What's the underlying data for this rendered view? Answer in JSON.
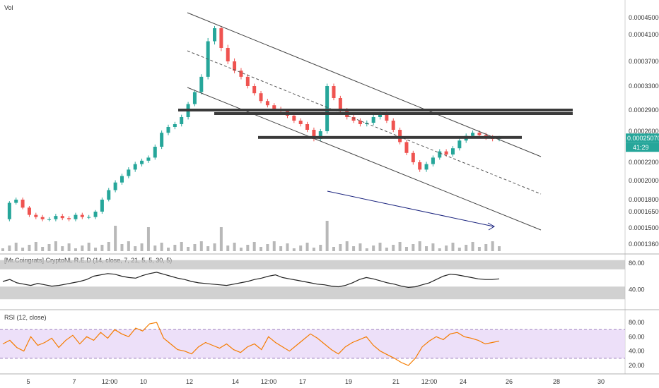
{
  "chart_data": [
    {
      "type": "candlestick",
      "title": "Vol",
      "price_scale": {
        "ticks": [
          "0.00045000",
          "0.00041000",
          "0.00037000",
          "0.00033000",
          "0.00029000",
          "0.00026000",
          "0.00022000",
          "0.00020000",
          "0.00018000",
          "0.00016500",
          "0.00015000",
          "0.00013600"
        ],
        "last_price": "0.00025070",
        "countdown": "41:29",
        "ylim": [
          0.000136,
          0.00045
        ]
      },
      "x_ticks": [
        "5",
        "7",
        "12:00",
        "10",
        "12",
        "14",
        "12:00",
        "17",
        "19",
        "21",
        "12:00",
        "24",
        "26",
        "28",
        "30"
      ],
      "series": [
        {
          "name": "",
          "close_path": [
            0.000158,
            0.000176,
            0.00018,
            0.00017,
            0.000162,
            0.00016,
            0.000158,
            0.000158,
            0.000161,
            0.000159,
            0.000158,
            0.000162,
            0.00016,
            0.00016,
            0.000165,
            0.00018,
            0.00019,
            0.000198,
            0.000205,
            0.000212,
            0.000218,
            0.000222,
            0.000226,
            0.00024,
            0.000258,
            0.000266,
            0.00027,
            0.00028,
            0.0003,
            0.00032,
            0.000345,
            0.0004,
            0.000425,
            0.00039,
            0.00037,
            0.000355,
            0.000345,
            0.00033,
            0.000318,
            0.000305,
            0.000298,
            0.000292,
            0.000288,
            0.000282,
            0.000275,
            0.00027,
            0.000262,
            0.00025,
            0.00026,
            0.00033,
            0.00031,
            0.00029,
            0.00028,
            0.000275,
            0.00027,
            0.000272,
            0.00028,
            0.000284,
            0.000275,
            0.000262,
            0.000246,
            0.000232,
            0.00022,
            0.000212,
            0.000218,
            0.000226,
            0.000234,
            0.00023,
            0.000238,
            0.000248,
            0.000254,
            0.000258,
            0.000255,
            0.000252,
            0.00025,
            0.000251
          ]
        }
      ],
      "horizontal_levels": [
        0.00029,
        0.000285,
        0.000252
      ],
      "channel": "descending"
    },
    {
      "type": "line",
      "title": "[Mr.Coingrats] CryptoNL R.E.D (14, close, 7, 21, 5, 5, 30, 5)",
      "y_ticks": [
        "80.00",
        "40.00"
      ],
      "series": [
        {
          "name": "",
          "values": [
            52,
            55,
            50,
            48,
            46,
            49,
            47,
            45,
            46,
            48,
            50,
            52,
            55,
            60,
            62,
            64,
            63,
            60,
            58,
            57,
            61,
            64,
            66,
            63,
            60,
            57,
            55,
            52,
            50,
            49,
            48,
            47,
            46,
            48,
            50,
            52,
            55,
            57,
            60,
            62,
            58,
            56,
            54,
            52,
            50,
            48,
            47,
            45,
            44,
            46,
            50,
            55,
            58,
            56,
            53,
            50,
            48,
            45,
            43,
            44,
            47,
            50,
            55,
            60,
            63,
            62,
            60,
            58,
            56,
            55,
            55,
            56
          ]
        }
      ]
    },
    {
      "type": "line",
      "title": "RSI (12, close)",
      "y_ticks": [
        "80.00",
        "60.00",
        "40.00",
        "20.00"
      ],
      "band": [
        30,
        70
      ],
      "series": [
        {
          "name": "",
          "values": [
            50,
            55,
            45,
            40,
            60,
            48,
            52,
            58,
            45,
            55,
            62,
            50,
            60,
            55,
            66,
            58,
            70,
            64,
            60,
            72,
            68,
            78,
            80,
            58,
            50,
            42,
            40,
            36,
            46,
            52,
            48,
            44,
            50,
            42,
            38,
            46,
            50,
            42,
            60,
            52,
            46,
            40,
            48,
            56,
            64,
            58,
            50,
            42,
            36,
            46,
            52,
            56,
            60,
            48,
            40,
            35,
            30,
            24,
            20,
            30,
            46,
            54,
            60,
            56,
            64,
            66,
            60,
            58,
            55,
            50,
            52,
            54
          ]
        }
      ]
    }
  ]
}
